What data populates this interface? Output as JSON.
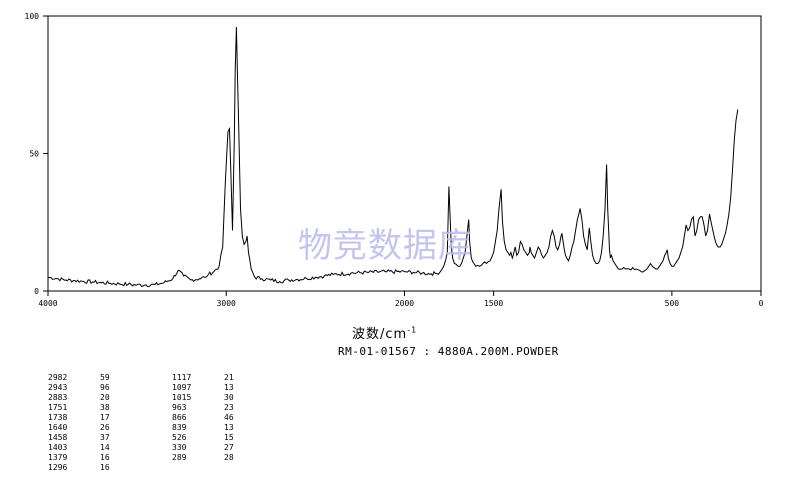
{
  "chart_data": {
    "type": "line",
    "xlabel_main": "波数/cm",
    "xlabel_sup": "-1",
    "xlim": [
      4000,
      0
    ],
    "ylim": [
      0,
      100
    ],
    "x_ticks": [
      4000,
      3000,
      2000,
      1500,
      500,
      0
    ],
    "y_ticks": [
      100,
      50,
      0
    ],
    "sample_label": "RM-01-01567 : 4880A.200M.POWDER",
    "watermark": "物竞数据库",
    "spectrum": [
      [
        4000,
        5
      ],
      [
        3950,
        4.5
      ],
      [
        3900,
        4
      ],
      [
        3850,
        3.8
      ],
      [
        3800,
        3.5
      ],
      [
        3750,
        3.3
      ],
      [
        3700,
        3
      ],
      [
        3650,
        2.8
      ],
      [
        3600,
        2.6
      ],
      [
        3550,
        2.4
      ],
      [
        3500,
        2.2
      ],
      [
        3450,
        2.2
      ],
      [
        3400,
        2.3
      ],
      [
        3350,
        3
      ],
      [
        3300,
        4.5
      ],
      [
        3270,
        7.5
      ],
      [
        3240,
        5.5
      ],
      [
        3200,
        4
      ],
      [
        3150,
        4.5
      ],
      [
        3120,
        5
      ],
      [
        3100,
        6
      ],
      [
        3070,
        7
      ],
      [
        3040,
        9
      ],
      [
        3020,
        16
      ],
      [
        3005,
        40
      ],
      [
        2990,
        58
      ],
      [
        2982,
        59
      ],
      [
        2975,
        45
      ],
      [
        2965,
        22
      ],
      [
        2955,
        55
      ],
      [
        2950,
        80
      ],
      [
        2943,
        96
      ],
      [
        2937,
        78
      ],
      [
        2930,
        60
      ],
      [
        2920,
        30
      ],
      [
        2910,
        20
      ],
      [
        2900,
        17
      ],
      [
        2890,
        18
      ],
      [
        2883,
        20
      ],
      [
        2875,
        14
      ],
      [
        2860,
        8
      ],
      [
        2840,
        5
      ],
      [
        2800,
        4.5
      ],
      [
        2750,
        4
      ],
      [
        2700,
        3.5
      ],
      [
        2650,
        4
      ],
      [
        2600,
        4.2
      ],
      [
        2550,
        4.6
      ],
      [
        2500,
        5
      ],
      [
        2450,
        5.5
      ],
      [
        2400,
        6
      ],
      [
        2300,
        6.5
      ],
      [
        2200,
        6.8
      ],
      [
        2100,
        7
      ],
      [
        2000,
        7
      ],
      [
        1950,
        6.8
      ],
      [
        1900,
        6.5
      ],
      [
        1850,
        6.3
      ],
      [
        1820,
        6.4
      ],
      [
        1800,
        7
      ],
      [
        1780,
        9
      ],
      [
        1760,
        14
      ],
      [
        1751,
        38
      ],
      [
        1745,
        28
      ],
      [
        1738,
        17
      ],
      [
        1730,
        12
      ],
      [
        1720,
        10
      ],
      [
        1700,
        9
      ],
      [
        1690,
        9
      ],
      [
        1680,
        10
      ],
      [
        1670,
        12
      ],
      [
        1660,
        14
      ],
      [
        1650,
        20
      ],
      [
        1640,
        26
      ],
      [
        1635,
        18
      ],
      [
        1625,
        12
      ],
      [
        1610,
        10
      ],
      [
        1600,
        9
      ],
      [
        1580,
        9
      ],
      [
        1560,
        10
      ],
      [
        1540,
        10
      ],
      [
        1520,
        11
      ],
      [
        1500,
        14
      ],
      [
        1490,
        18
      ],
      [
        1480,
        22
      ],
      [
        1470,
        30
      ],
      [
        1458,
        37
      ],
      [
        1450,
        25
      ],
      [
        1440,
        18
      ],
      [
        1430,
        15
      ],
      [
        1420,
        14
      ],
      [
        1410,
        13
      ],
      [
        1403,
        14
      ],
      [
        1395,
        12
      ],
      [
        1390,
        13
      ],
      [
        1379,
        16
      ],
      [
        1370,
        13
      ],
      [
        1360,
        14
      ],
      [
        1350,
        18
      ],
      [
        1340,
        17
      ],
      [
        1330,
        15
      ],
      [
        1320,
        14
      ],
      [
        1310,
        13
      ],
      [
        1300,
        14
      ],
      [
        1296,
        16
      ],
      [
        1290,
        14
      ],
      [
        1280,
        13
      ],
      [
        1270,
        12
      ],
      [
        1260,
        14
      ],
      [
        1250,
        16
      ],
      [
        1240,
        15
      ],
      [
        1230,
        13
      ],
      [
        1220,
        12
      ],
      [
        1210,
        13
      ],
      [
        1200,
        14
      ],
      [
        1190,
        16
      ],
      [
        1180,
        20
      ],
      [
        1170,
        22
      ],
      [
        1160,
        20
      ],
      [
        1150,
        16
      ],
      [
        1140,
        15
      ],
      [
        1130,
        17
      ],
      [
        1117,
        21
      ],
      [
        1110,
        18
      ],
      [
        1097,
        13
      ],
      [
        1090,
        12
      ],
      [
        1080,
        11
      ],
      [
        1070,
        13
      ],
      [
        1060,
        16
      ],
      [
        1050,
        18
      ],
      [
        1040,
        22
      ],
      [
        1030,
        26
      ],
      [
        1015,
        30
      ],
      [
        1005,
        26
      ],
      [
        995,
        20
      ],
      [
        985,
        17
      ],
      [
        975,
        15
      ],
      [
        963,
        23
      ],
      [
        955,
        18
      ],
      [
        945,
        13
      ],
      [
        935,
        11
      ],
      [
        925,
        10
      ],
      [
        915,
        10
      ],
      [
        905,
        11
      ],
      [
        895,
        14
      ],
      [
        885,
        20
      ],
      [
        875,
        30
      ],
      [
        866,
        46
      ],
      [
        860,
        30
      ],
      [
        850,
        15
      ],
      [
        845,
        12
      ],
      [
        839,
        13
      ],
      [
        830,
        11
      ],
      [
        820,
        10
      ],
      [
        810,
        9
      ],
      [
        800,
        8
      ],
      [
        780,
        8
      ],
      [
        760,
        8
      ],
      [
        740,
        8
      ],
      [
        720,
        8.5
      ],
      [
        700,
        8
      ],
      [
        680,
        7.5
      ],
      [
        660,
        7
      ],
      [
        650,
        7.5
      ],
      [
        640,
        8
      ],
      [
        630,
        9
      ],
      [
        620,
        10
      ],
      [
        610,
        9
      ],
      [
        600,
        8.5
      ],
      [
        590,
        8
      ],
      [
        580,
        8
      ],
      [
        570,
        9
      ],
      [
        560,
        10
      ],
      [
        550,
        11
      ],
      [
        540,
        13
      ],
      [
        526,
        15
      ],
      [
        520,
        12
      ],
      [
        510,
        10
      ],
      [
        500,
        9
      ],
      [
        490,
        9
      ],
      [
        480,
        10
      ],
      [
        470,
        11
      ],
      [
        460,
        12
      ],
      [
        450,
        14
      ],
      [
        440,
        16
      ],
      [
        430,
        20
      ],
      [
        420,
        24
      ],
      [
        410,
        22
      ],
      [
        400,
        23
      ],
      [
        390,
        26
      ],
      [
        380,
        27
      ],
      [
        375,
        23
      ],
      [
        370,
        20
      ],
      [
        360,
        22
      ],
      [
        350,
        26
      ],
      [
        340,
        27
      ],
      [
        330,
        27
      ],
      [
        320,
        24
      ],
      [
        310,
        20
      ],
      [
        300,
        22
      ],
      [
        289,
        28
      ],
      [
        280,
        25
      ],
      [
        270,
        22
      ],
      [
        260,
        19
      ],
      [
        250,
        17
      ],
      [
        240,
        16
      ],
      [
        230,
        16
      ],
      [
        220,
        17
      ],
      [
        210,
        19
      ],
      [
        200,
        21
      ],
      [
        190,
        24
      ],
      [
        180,
        28
      ],
      [
        170,
        34
      ],
      [
        160,
        44
      ],
      [
        150,
        55
      ],
      [
        140,
        62
      ],
      [
        130,
        66
      ]
    ]
  },
  "peak_table": {
    "left": [
      [
        "2982",
        "59"
      ],
      [
        "2943",
        "96"
      ],
      [
        "2883",
        "20"
      ],
      [
        "1751",
        "38"
      ],
      [
        "1738",
        "17"
      ],
      [
        "1640",
        "26"
      ],
      [
        "1458",
        "37"
      ],
      [
        "1403",
        "14"
      ],
      [
        "1379",
        "16"
      ],
      [
        "1296",
        "16"
      ]
    ],
    "right": [
      [
        "1117",
        "21"
      ],
      [
        "1097",
        "13"
      ],
      [
        "1015",
        "30"
      ],
      [
        "963",
        "23"
      ],
      [
        "866",
        "46"
      ],
      [
        "839",
        "13"
      ],
      [
        "526",
        "15"
      ],
      [
        "330",
        "27"
      ],
      [
        "289",
        "28"
      ]
    ]
  }
}
